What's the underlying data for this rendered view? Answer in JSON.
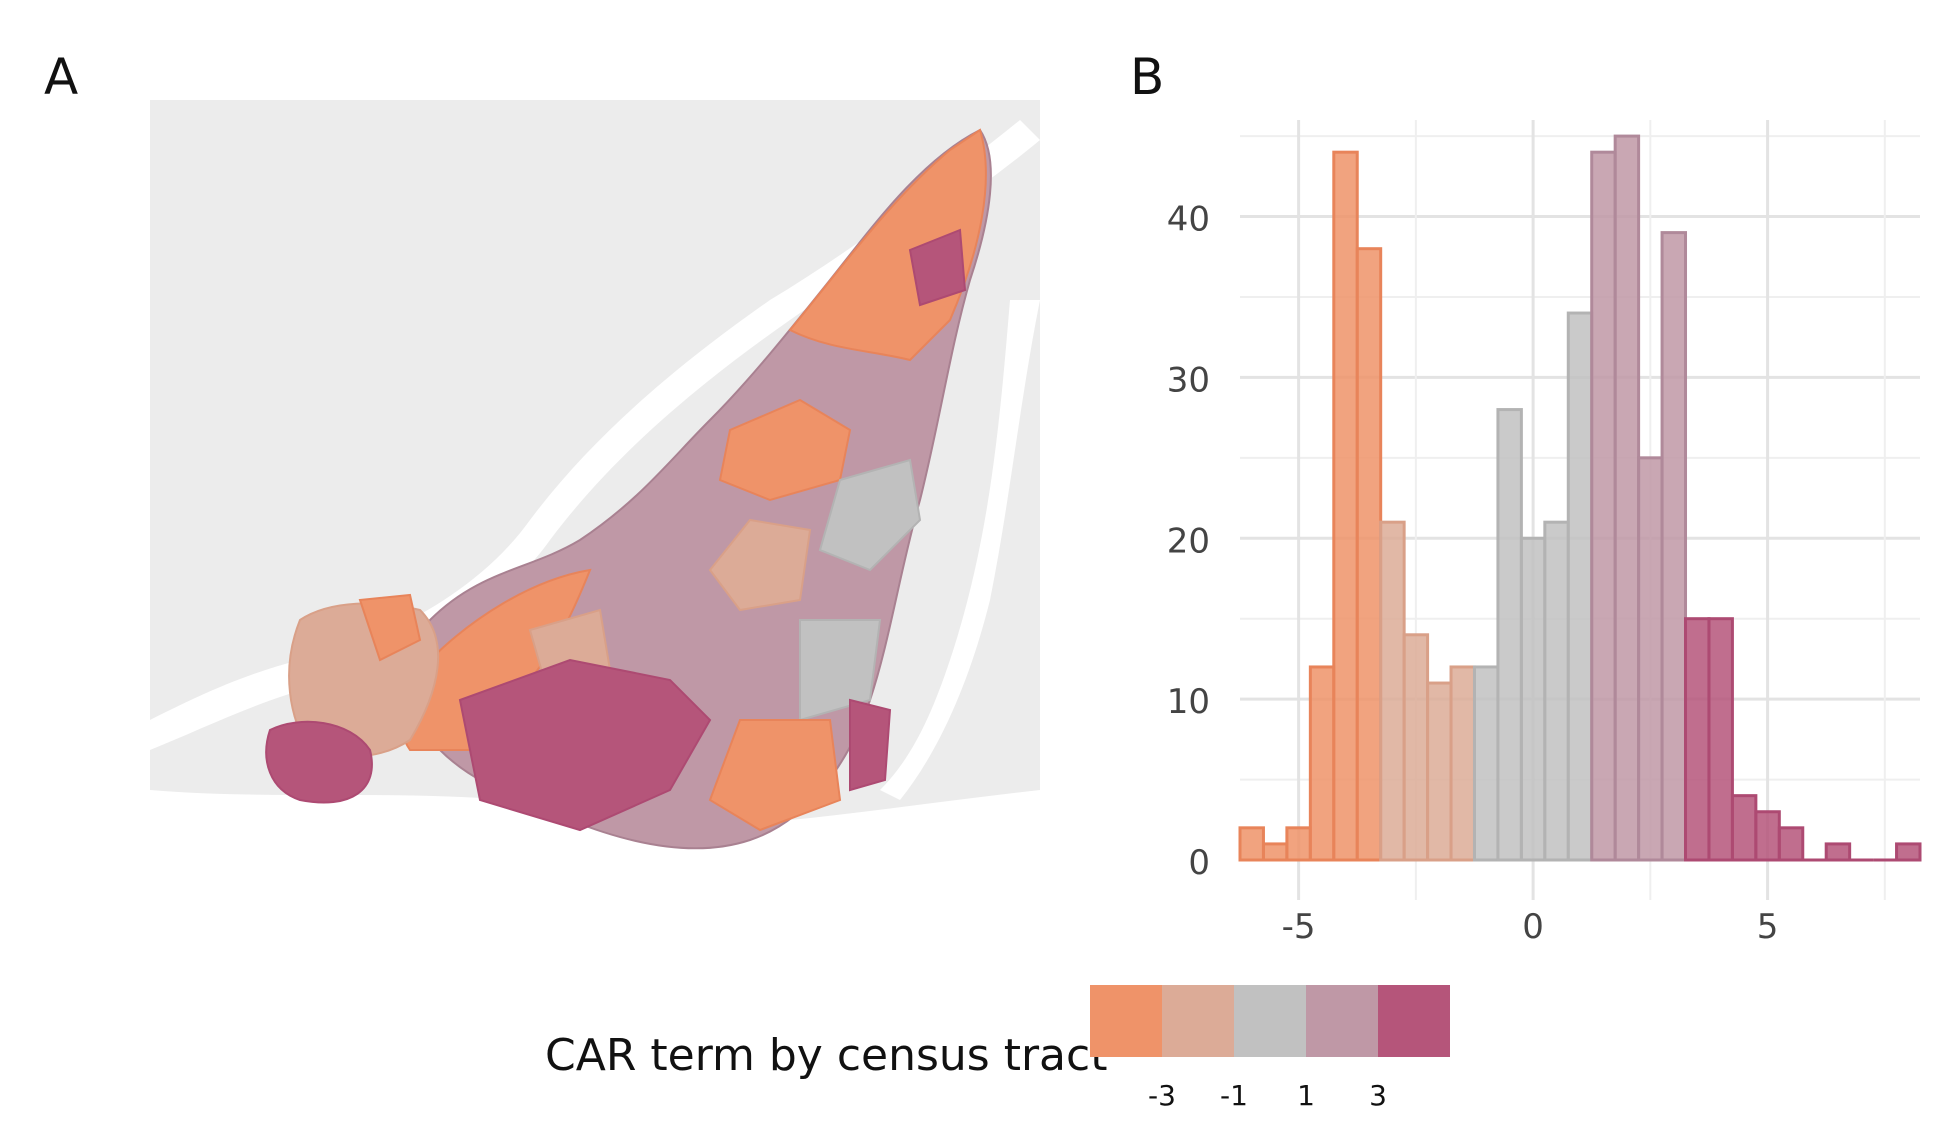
{
  "panels": {
    "a": "A",
    "b": "B"
  },
  "legend": {
    "title": "CAR term by census tract",
    "colors": [
      "#ef9369",
      "#dcab97",
      "#c1c1c1",
      "#bf98a6",
      "#b5557a"
    ],
    "breaks": [
      "-3",
      "-1",
      "1",
      "3"
    ]
  },
  "map": {
    "water_color": "#ffffff",
    "land_color": "#ececec",
    "tract_colors": [
      "#ef9369",
      "#dcab97",
      "#c1c1c1",
      "#bf98a6",
      "#b5557a"
    ]
  },
  "chart_data": {
    "type": "bar",
    "subtype": "histogram",
    "bin_width": 0.5,
    "x_ticks": [
      -5,
      0,
      5
    ],
    "y_ticks": [
      0,
      10,
      20,
      30,
      40
    ],
    "xlim": [
      -6.25,
      8.25
    ],
    "ylim": [
      0,
      46
    ],
    "xlabel": "",
    "ylabel": "",
    "grid": true,
    "bins": [
      {
        "start": -6.0,
        "count": 2,
        "class": 0
      },
      {
        "start": -5.5,
        "count": 1,
        "class": 0
      },
      {
        "start": -5.0,
        "count": 2,
        "class": 0
      },
      {
        "start": -4.5,
        "count": 12,
        "class": 0
      },
      {
        "start": -4.0,
        "count": 44,
        "class": 0
      },
      {
        "start": -3.5,
        "count": 38,
        "class": 0
      },
      {
        "start": -3.0,
        "count": 21,
        "class": 1
      },
      {
        "start": -2.5,
        "count": 14,
        "class": 1
      },
      {
        "start": -2.0,
        "count": 11,
        "class": 1
      },
      {
        "start": -1.5,
        "count": 12,
        "class": 1
      },
      {
        "start": -1.0,
        "count": 12,
        "class": 2
      },
      {
        "start": -0.5,
        "count": 28,
        "class": 2
      },
      {
        "start": 0.0,
        "count": 20,
        "class": 2
      },
      {
        "start": 0.5,
        "count": 21,
        "class": 2
      },
      {
        "start": 1.0,
        "count": 34,
        "class": 2
      },
      {
        "start": 1.5,
        "count": 44,
        "class": 3
      },
      {
        "start": 2.0,
        "count": 45,
        "class": 3
      },
      {
        "start": 2.5,
        "count": 25,
        "class": 3
      },
      {
        "start": 3.0,
        "count": 39,
        "class": 3
      },
      {
        "start": 3.5,
        "count": 15,
        "class": 4
      },
      {
        "start": 4.0,
        "count": 15,
        "class": 4
      },
      {
        "start": 4.5,
        "count": 4,
        "class": 4
      },
      {
        "start": 5.0,
        "count": 3,
        "class": 4
      },
      {
        "start": 5.5,
        "count": 2,
        "class": 4
      },
      {
        "start": 6.0,
        "count": 0,
        "class": 4
      },
      {
        "start": 6.5,
        "count": 1,
        "class": 4
      },
      {
        "start": 7.0,
        "count": 0,
        "class": 4
      },
      {
        "start": 7.5,
        "count": 0,
        "class": 4
      },
      {
        "start": 8.0,
        "count": 1,
        "class": 4
      }
    ],
    "colors": [
      "#ef9369",
      "#dcab97",
      "#c1c1c1",
      "#bf98a6",
      "#b5557a"
    ],
    "edge_colors": [
      "#e8845a",
      "#d9a088",
      "#b3b3b3",
      "#b0899a",
      "#ad4a72"
    ]
  }
}
